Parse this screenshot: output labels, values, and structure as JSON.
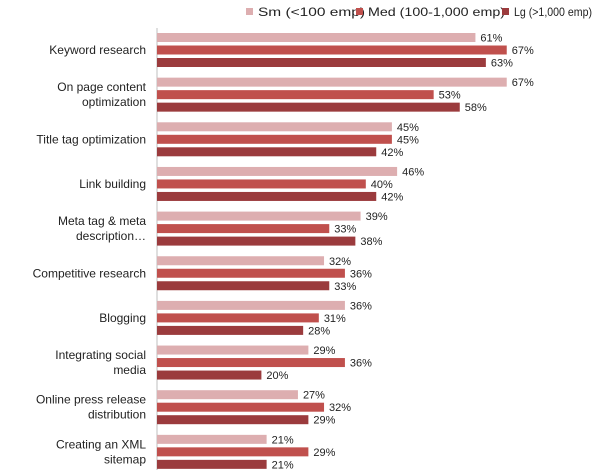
{
  "chart_data": {
    "type": "bar",
    "orientation": "horizontal",
    "title": "",
    "xlabel": "",
    "ylabel": "",
    "value_suffix": "%",
    "xlim": [
      0,
      100
    ],
    "grid": false,
    "legend_position": "top",
    "categories": [
      "Keyword research",
      "On page content optimization",
      "Title tag optimization",
      "Link building",
      "Meta tag & meta description…",
      "Competitive research",
      "Blogging",
      "Integrating social media",
      "Online press release distribution",
      "Creating an XML sitemap"
    ],
    "series": [
      {
        "name": "Sm (<100 emp)",
        "color": "#ddaeb0",
        "values": [
          61,
          67,
          45,
          46,
          39,
          32,
          36,
          29,
          27,
          21
        ]
      },
      {
        "name": "Med (100-1,000 emp)",
        "color": "#c0504d",
        "values": [
          67,
          53,
          45,
          40,
          33,
          36,
          31,
          36,
          32,
          29
        ]
      },
      {
        "name": "Lg (>1,000 emp)",
        "color": "#9b3b3d",
        "values": [
          63,
          58,
          42,
          42,
          38,
          33,
          28,
          20,
          29,
          21
        ]
      }
    ]
  }
}
